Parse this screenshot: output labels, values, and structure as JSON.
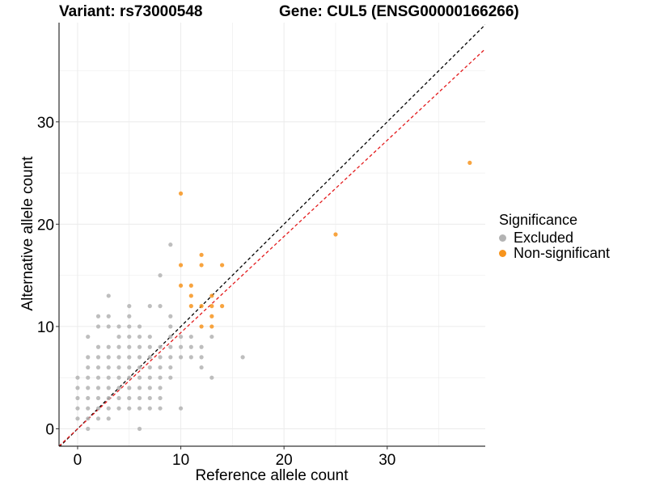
{
  "titles": {
    "variant": "Variant: rs73000548",
    "gene": "Gene: CUL5 (ENSG00000166266)"
  },
  "legend": {
    "title": "Significance",
    "items": [
      {
        "label": "Excluded",
        "color": "#b3b3b3"
      },
      {
        "label": "Non-significant",
        "color": "#f7941d"
      }
    ]
  },
  "chart_data": {
    "type": "scatter",
    "xlabel": "Reference allele count",
    "ylabel": "Alternative allele count",
    "xlim": [
      -1.8,
      39.5
    ],
    "ylim": [
      -1.7,
      39.7
    ],
    "xticks": [
      0,
      10,
      20,
      30
    ],
    "yticks": [
      0,
      10,
      20,
      30
    ],
    "grid": true,
    "legend_position": "right",
    "reference_lines": [
      {
        "name": "identity",
        "slope": 1.0,
        "intercept": 0,
        "color": "#000000",
        "dash": "dashed"
      },
      {
        "name": "fit",
        "slope": 0.94,
        "intercept": 0,
        "color": "#e31a1c",
        "dash": "dashed"
      }
    ],
    "series": [
      {
        "name": "Excluded",
        "color": "#b3b3b3",
        "points": [
          [
            0,
            1
          ],
          [
            0,
            2
          ],
          [
            0,
            3
          ],
          [
            0,
            4
          ],
          [
            0,
            5
          ],
          [
            1,
            0
          ],
          [
            1,
            1
          ],
          [
            1,
            2
          ],
          [
            1,
            3
          ],
          [
            1,
            4
          ],
          [
            1,
            5
          ],
          [
            1,
            6
          ],
          [
            1,
            7
          ],
          [
            1,
            9
          ],
          [
            2,
            1
          ],
          [
            2,
            2
          ],
          [
            2,
            3
          ],
          [
            2,
            4
          ],
          [
            2,
            5
          ],
          [
            2,
            6
          ],
          [
            2,
            7
          ],
          [
            2,
            8
          ],
          [
            2,
            10
          ],
          [
            2,
            11
          ],
          [
            3,
            1
          ],
          [
            3,
            2
          ],
          [
            3,
            3
          ],
          [
            3,
            4
          ],
          [
            3,
            5
          ],
          [
            3,
            6
          ],
          [
            3,
            7
          ],
          [
            3,
            8
          ],
          [
            3,
            10
          ],
          [
            3,
            11
          ],
          [
            3,
            13
          ],
          [
            4,
            2
          ],
          [
            4,
            3
          ],
          [
            4,
            4
          ],
          [
            4,
            5
          ],
          [
            4,
            6
          ],
          [
            4,
            7
          ],
          [
            4,
            8
          ],
          [
            4,
            9
          ],
          [
            4,
            10
          ],
          [
            5,
            2
          ],
          [
            5,
            3
          ],
          [
            5,
            4
          ],
          [
            5,
            5
          ],
          [
            5,
            6
          ],
          [
            5,
            7
          ],
          [
            5,
            8
          ],
          [
            5,
            9
          ],
          [
            5,
            10
          ],
          [
            5,
            11
          ],
          [
            5,
            12
          ],
          [
            6,
            0
          ],
          [
            6,
            2
          ],
          [
            6,
            3
          ],
          [
            6,
            4
          ],
          [
            6,
            5
          ],
          [
            6,
            6
          ],
          [
            6,
            7
          ],
          [
            6,
            8
          ],
          [
            6,
            9
          ],
          [
            6,
            10
          ],
          [
            7,
            2
          ],
          [
            7,
            3
          ],
          [
            7,
            4
          ],
          [
            7,
            5
          ],
          [
            7,
            6
          ],
          [
            7,
            7
          ],
          [
            7,
            8
          ],
          [
            7,
            9
          ],
          [
            7,
            12
          ],
          [
            8,
            2
          ],
          [
            8,
            3
          ],
          [
            8,
            4
          ],
          [
            8,
            5
          ],
          [
            8,
            6
          ],
          [
            8,
            7
          ],
          [
            8,
            8
          ],
          [
            8,
            12
          ],
          [
            8,
            15
          ],
          [
            9,
            5
          ],
          [
            9,
            6
          ],
          [
            9,
            7
          ],
          [
            9,
            8
          ],
          [
            9,
            9
          ],
          [
            9,
            10
          ],
          [
            9,
            11
          ],
          [
            9,
            18
          ],
          [
            10,
            2
          ],
          [
            10,
            7
          ],
          [
            10,
            8
          ],
          [
            10,
            9
          ],
          [
            11,
            7
          ],
          [
            11,
            8
          ],
          [
            11,
            9
          ],
          [
            12,
            6
          ],
          [
            12,
            7
          ],
          [
            12,
            8
          ],
          [
            13,
            5
          ],
          [
            13,
            9
          ],
          [
            16,
            7
          ]
        ]
      },
      {
        "name": "Non-significant",
        "color": "#f7941d",
        "points": [
          [
            10,
            23
          ],
          [
            10,
            16
          ],
          [
            10,
            14
          ],
          [
            11,
            14
          ],
          [
            11,
            13
          ],
          [
            11,
            12
          ],
          [
            12,
            17
          ],
          [
            12,
            16
          ],
          [
            12,
            12
          ],
          [
            12,
            10
          ],
          [
            13,
            13
          ],
          [
            13,
            12
          ],
          [
            13,
            11
          ],
          [
            13,
            10
          ],
          [
            14,
            16
          ],
          [
            14,
            12
          ],
          [
            25,
            19
          ],
          [
            38,
            26
          ]
        ]
      }
    ]
  }
}
